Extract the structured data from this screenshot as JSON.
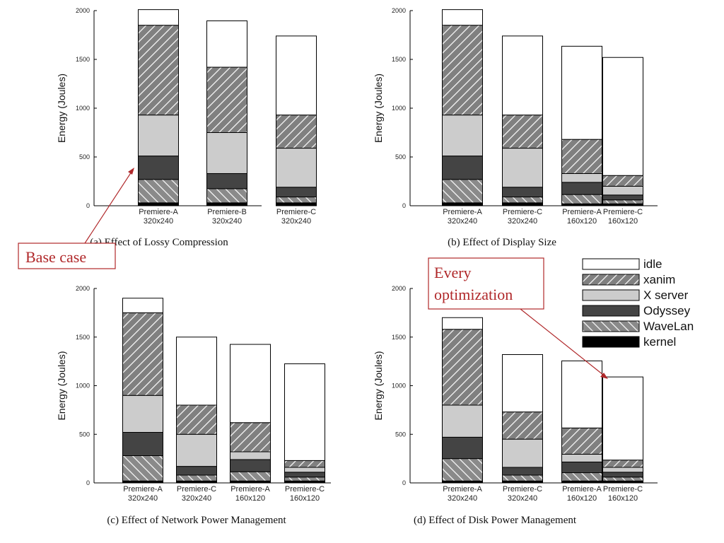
{
  "legend": {
    "placement": "top-right",
    "entries": [
      "idle",
      "xanim",
      "X server",
      "Odyssey",
      "WaveLan",
      "kernel"
    ]
  },
  "components": [
    {
      "name": "kernel",
      "fill": "#000000",
      "pattern": "solid"
    },
    {
      "name": "WaveLan",
      "fill": "#8a8a8a",
      "pattern": "diag-down"
    },
    {
      "name": "Odyssey",
      "fill": "#444444",
      "pattern": "solid"
    },
    {
      "name": "X server",
      "fill": "#cccccc",
      "pattern": "solid"
    },
    {
      "name": "xanim",
      "fill": "#808080",
      "pattern": "diag-up"
    },
    {
      "name": "idle",
      "fill": "#ffffff",
      "pattern": "solid"
    }
  ],
  "annotations": {
    "base_case": "Base case",
    "every_optimization": [
      "Every",
      "optimization"
    ]
  },
  "chart_data": [
    {
      "type": "bar",
      "stacked": true,
      "title": "(a) Effect of Lossy Compression",
      "ylabel": "Energy (Joules)",
      "ylim": [
        0,
        2000
      ],
      "yticks": [
        0,
        500,
        1000,
        1500,
        2000
      ],
      "categories": [
        [
          "Premiere-A",
          "320x240"
        ],
        [
          "Premiere-B",
          "320x240"
        ],
        [
          "Premiere-C",
          "320x240"
        ]
      ],
      "series": [
        {
          "name": "kernel",
          "values": [
            30,
            30,
            30
          ]
        },
        {
          "name": "WaveLan",
          "values": [
            240,
            145,
            60
          ]
        },
        {
          "name": "Odyssey",
          "values": [
            240,
            155,
            100
          ]
        },
        {
          "name": "X server",
          "values": [
            420,
            420,
            400
          ]
        },
        {
          "name": "xanim",
          "values": [
            920,
            670,
            340
          ]
        },
        {
          "name": "idle",
          "values": [
            160,
            475,
            810
          ]
        }
      ]
    },
    {
      "type": "bar",
      "stacked": true,
      "title": "(b) Effect of Display Size",
      "ylabel": "Energy (Joules)",
      "ylim": [
        0,
        2000
      ],
      "yticks": [
        0,
        500,
        1000,
        1500,
        2000
      ],
      "categories": [
        [
          "Premiere-A",
          "320x240"
        ],
        [
          "Premiere-C",
          "320x240"
        ],
        [
          "Premiere-A",
          "160x120"
        ],
        [
          "Premiere-C",
          "160x120"
        ]
      ],
      "series": [
        {
          "name": "kernel",
          "values": [
            30,
            30,
            20,
            20
          ]
        },
        {
          "name": "WaveLan",
          "values": [
            240,
            60,
            95,
            40
          ]
        },
        {
          "name": "Odyssey",
          "values": [
            240,
            100,
            125,
            50
          ]
        },
        {
          "name": "X server",
          "values": [
            420,
            400,
            90,
            90
          ]
        },
        {
          "name": "xanim",
          "values": [
            920,
            340,
            350,
            110
          ]
        },
        {
          "name": "idle",
          "values": [
            160,
            810,
            955,
            1210
          ]
        }
      ]
    },
    {
      "type": "bar",
      "stacked": true,
      "title": "(c) Effect of Network Power Management",
      "ylabel": "Energy (Joules)",
      "ylim": [
        0,
        2000
      ],
      "yticks": [
        0,
        500,
        1000,
        1500,
        2000
      ],
      "categories": [
        [
          "Premiere-A",
          "320x240"
        ],
        [
          "Premiere-C",
          "320x240"
        ],
        [
          "Premiere-A",
          "160x120"
        ],
        [
          "Premiere-C",
          "160x120"
        ]
      ],
      "series": [
        {
          "name": "kernel",
          "values": [
            20,
            20,
            20,
            20
          ]
        },
        {
          "name": "WaveLan",
          "values": [
            260,
            60,
            95,
            40
          ]
        },
        {
          "name": "Odyssey",
          "values": [
            240,
            90,
            125,
            50
          ]
        },
        {
          "name": "X server",
          "values": [
            380,
            330,
            80,
            50
          ]
        },
        {
          "name": "xanim",
          "values": [
            850,
            300,
            300,
            70
          ]
        },
        {
          "name": "idle",
          "values": [
            150,
            700,
            805,
            995
          ]
        }
      ]
    },
    {
      "type": "bar",
      "stacked": true,
      "title": "(d) Effect of Disk Power Management",
      "ylabel": "Energy (Joules)",
      "ylim": [
        0,
        2000
      ],
      "yticks": [
        0,
        500,
        1000,
        1500,
        2000
      ],
      "categories": [
        [
          "Premiere-A",
          "320x240"
        ],
        [
          "Premiere-C",
          "320x240"
        ],
        [
          "Premiere-A",
          "160x120"
        ],
        [
          "Premiere-C",
          "160x120"
        ]
      ],
      "series": [
        {
          "name": "kernel",
          "values": [
            20,
            20,
            20,
            20
          ]
        },
        {
          "name": "WaveLan",
          "values": [
            230,
            60,
            85,
            40
          ]
        },
        {
          "name": "Odyssey",
          "values": [
            220,
            80,
            110,
            50
          ]
        },
        {
          "name": "X server",
          "values": [
            330,
            290,
            80,
            50
          ]
        },
        {
          "name": "xanim",
          "values": [
            780,
            280,
            270,
            75
          ]
        },
        {
          "name": "idle",
          "values": [
            120,
            590,
            690,
            855
          ]
        }
      ]
    }
  ]
}
